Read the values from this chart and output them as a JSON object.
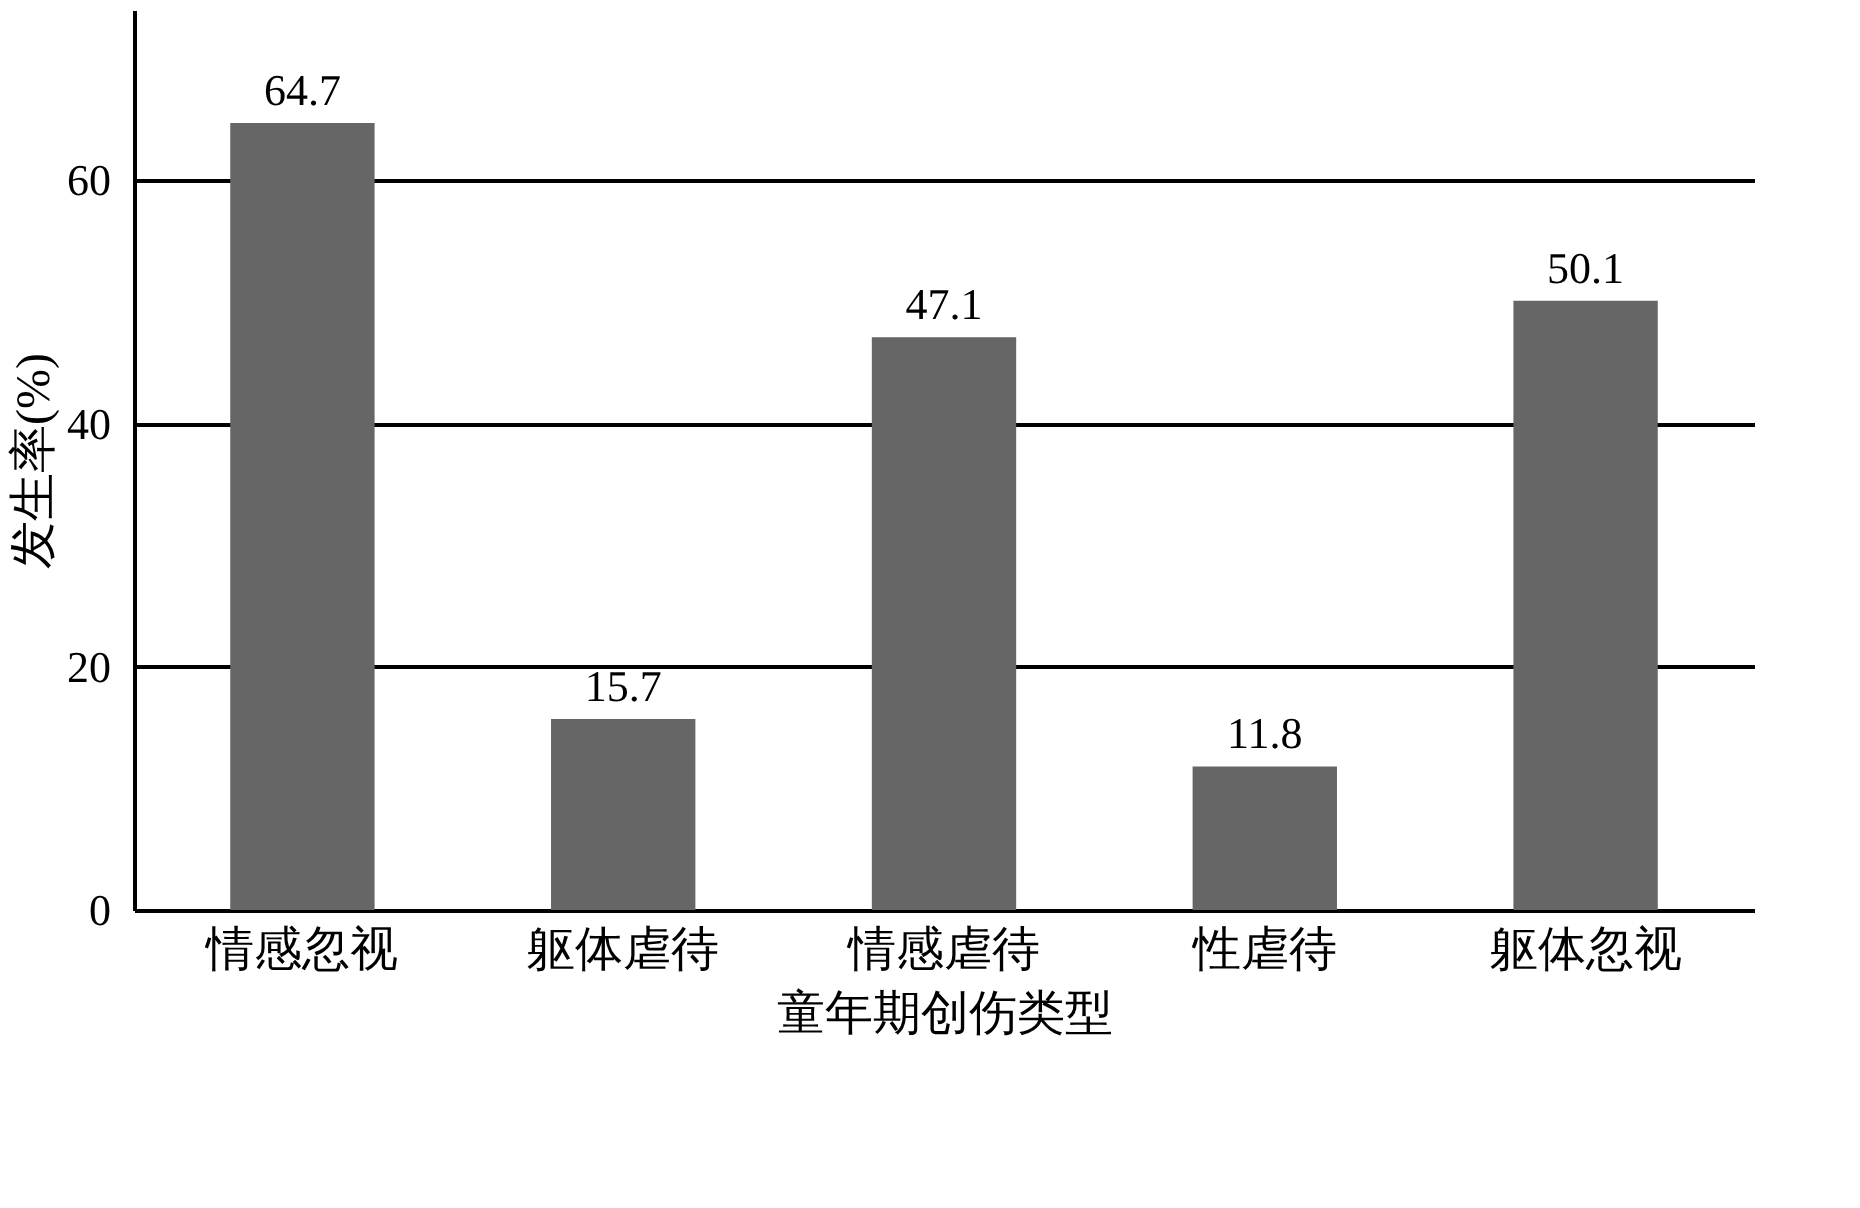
{
  "chart_data": {
    "type": "bar",
    "xlabel": "童年期创伤类型",
    "ylabel": "发生率(%)",
    "categories": [
      "情感忽视",
      "躯体虐待",
      "情感虐待",
      "性虐待",
      "躯体忽视"
    ],
    "values": [
      64.7,
      15.7,
      47.1,
      11.8,
      50.1
    ],
    "color": "#666666",
    "data_labels": true,
    "ylim": [
      0,
      74
    ],
    "yticks": [
      0,
      20,
      40,
      60
    ],
    "grid": "y"
  }
}
